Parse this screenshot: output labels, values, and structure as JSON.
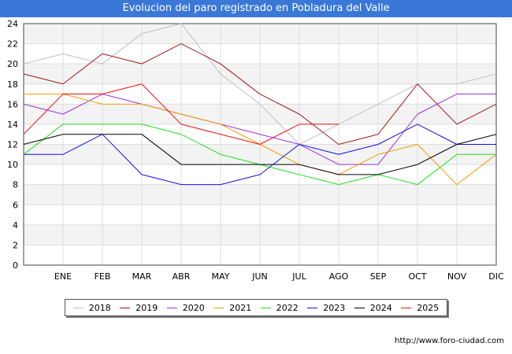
{
  "header": {
    "title": "Evolucion del paro registrado en Pobladura del Valle"
  },
  "footer": {
    "source": "http://www.foro-ciudad.com"
  },
  "chart_data": {
    "type": "line",
    "title": "Evolucion del paro registrado en Pobladura del Valle",
    "xlabel": "",
    "ylabel": "",
    "categories": [
      "",
      "ENE",
      "FEB",
      "MAR",
      "ABR",
      "MAY",
      "JUN",
      "JUL",
      "AGO",
      "SEP",
      "OCT",
      "NOV",
      "DIC"
    ],
    "ylim": [
      0,
      24
    ],
    "yticks": [
      0,
      2,
      4,
      6,
      8,
      10,
      12,
      14,
      16,
      18,
      20,
      22,
      24
    ],
    "grid": true,
    "legend_position": "bottom",
    "series": [
      {
        "name": "2018",
        "color": "#c0c0c0",
        "values": [
          20,
          21,
          20,
          23,
          24,
          19,
          16,
          12,
          14,
          16,
          18,
          18,
          19
        ]
      },
      {
        "name": "2019",
        "color": "#a01818",
        "values": [
          19,
          18,
          21,
          20,
          22,
          20,
          17,
          15,
          12,
          13,
          18,
          14,
          16
        ]
      },
      {
        "name": "2020",
        "color": "#9a30e0",
        "values": [
          16,
          15,
          17,
          16,
          15,
          14,
          13,
          12,
          10,
          10,
          15,
          17,
          17
        ]
      },
      {
        "name": "2021",
        "color": "#f0a000",
        "values": [
          17,
          17,
          16,
          16,
          15,
          14,
          12,
          10,
          9,
          11,
          12,
          8,
          11
        ]
      },
      {
        "name": "2022",
        "color": "#20e020",
        "values": [
          11,
          14,
          14,
          14,
          13,
          11,
          10,
          9,
          8,
          9,
          8,
          11,
          11
        ]
      },
      {
        "name": "2023",
        "color": "#1010e0",
        "values": [
          11,
          11,
          13,
          9,
          8,
          8,
          9,
          12,
          11,
          12,
          14,
          12,
          12
        ]
      },
      {
        "name": "2024",
        "color": "#000000",
        "values": [
          12,
          13,
          13,
          13,
          10,
          10,
          10,
          10,
          9,
          9,
          10,
          12,
          13
        ]
      },
      {
        "name": "2025",
        "color": "#ee1010",
        "values": [
          13,
          17,
          17,
          18,
          14,
          13,
          12,
          14,
          14,
          null,
          null,
          null,
          null
        ]
      }
    ]
  }
}
